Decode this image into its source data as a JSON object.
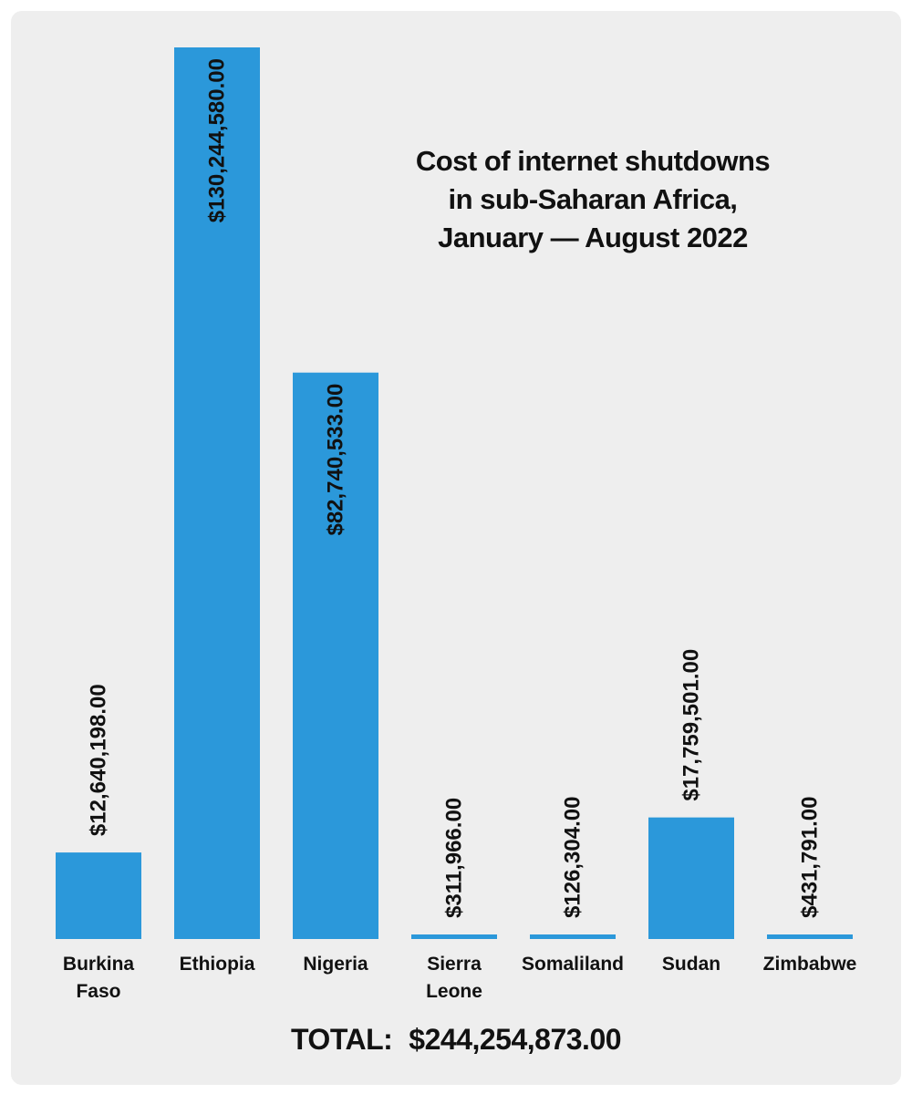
{
  "title_lines": [
    "Cost of internet shutdowns",
    "in sub-Saharan Africa,",
    "January — August 2022"
  ],
  "total": {
    "label": "TOTAL:",
    "value": "$244,254,873.00"
  },
  "colors": {
    "bar": "#2b98da",
    "background": "#eeeeee",
    "text": "#111111"
  },
  "chart_data": {
    "type": "bar",
    "title": "Cost of internet shutdowns in sub-Saharan Africa, January — August 2022",
    "categories": [
      "Burkina Faso",
      "Ethiopia",
      "Nigeria",
      "Sierra Leone",
      "Somaliland",
      "Sudan",
      "Zimbabwe"
    ],
    "category_lines": [
      [
        "Burkina",
        "Faso"
      ],
      [
        "Ethiopia"
      ],
      [
        "Nigeria"
      ],
      [
        "Sierra",
        "Leone"
      ],
      [
        "Somaliland"
      ],
      [
        "Sudan"
      ],
      [
        "Zimbabwe"
      ]
    ],
    "values": [
      12640198,
      130244580,
      82740533,
      311966,
      126304,
      17759501,
      431791
    ],
    "value_labels": [
      "$12,640,198.00",
      "$130,244,580.00",
      "$82,740,533.00",
      "$311,966.00",
      "$126,304.00",
      "$17,759,501.00",
      "$431,791.00"
    ],
    "label_inside": [
      false,
      true,
      true,
      false,
      false,
      false,
      false
    ],
    "ylim": [
      0,
      130244580
    ],
    "grid": false,
    "legend": "none"
  }
}
